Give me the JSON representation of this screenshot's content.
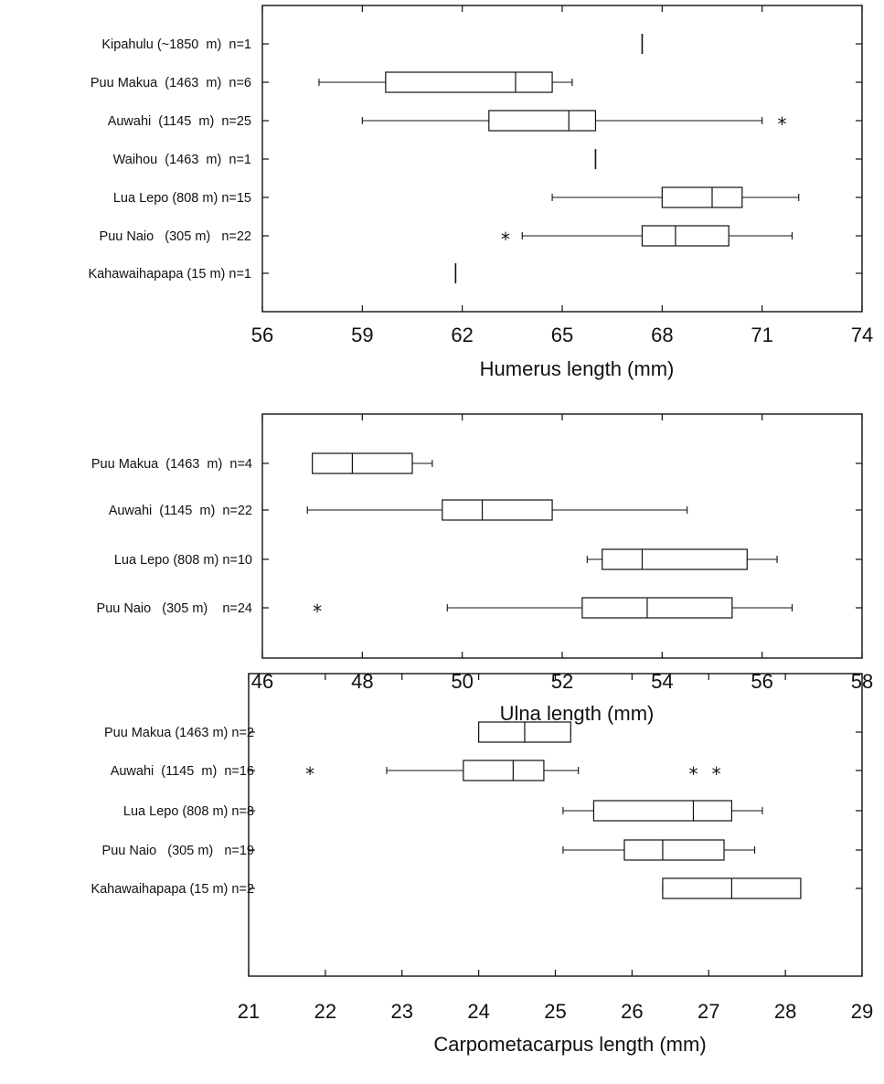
{
  "chart_data": [
    {
      "type": "boxplot",
      "xlabel": "Humerus length (mm)",
      "xlim": [
        56,
        74
      ],
      "xticks": [
        56,
        59,
        62,
        65,
        68,
        71,
        74
      ],
      "categories": [
        "Kipahulu (~1850  m)  n=1",
        "Puu Makua  (1463  m)  n=6",
        "Auwahi  (1145  m)  n=25",
        "Waihou  (1463  m)  n=1",
        "Lua Lepo (808 m) n=15",
        "Puu Naio   (305 m)   n=22",
        "Kahawaihapapa (15 m) n=1"
      ],
      "boxes": [
        {
          "single": 67.4
        },
        {
          "whisker_low": 57.7,
          "q1": 59.7,
          "median": 63.6,
          "q3": 64.7,
          "whisker_high": 65.3
        },
        {
          "whisker_low": 59.0,
          "q1": 62.8,
          "median": 65.2,
          "q3": 66.0,
          "whisker_high": 71.0,
          "outliers": [
            71.6
          ]
        },
        {
          "single": 66.0
        },
        {
          "whisker_low": 64.7,
          "q1": 68.0,
          "median": 69.5,
          "q3": 70.4,
          "whisker_high": 72.1
        },
        {
          "whisker_low": 63.8,
          "q1": 67.4,
          "median": 68.4,
          "q3": 70.0,
          "whisker_high": 71.9,
          "outliers": [
            63.3
          ]
        },
        {
          "single": 61.8
        }
      ]
    },
    {
      "type": "boxplot",
      "xlabel": "Ulna length (mm)",
      "xlim": [
        46,
        58
      ],
      "xticks": [
        46,
        48,
        50,
        52,
        54,
        56,
        58
      ],
      "categories": [
        "Puu Makua  (1463  m)  n=4",
        "Auwahi  (1145  m)  n=22",
        "Lua Lepo (808 m) n=10",
        "Puu Naio   (305 m)    n=24"
      ],
      "boxes": [
        {
          "whisker_low": 47.0,
          "q1": 47.0,
          "median": 47.8,
          "q3": 49.0,
          "whisker_high": 49.4
        },
        {
          "whisker_low": 46.9,
          "q1": 49.6,
          "median": 50.4,
          "q3": 51.8,
          "whisker_high": 54.5
        },
        {
          "whisker_low": 52.5,
          "q1": 52.8,
          "median": 53.6,
          "q3": 55.7,
          "whisker_high": 56.3
        },
        {
          "whisker_low": 49.7,
          "q1": 52.4,
          "median": 53.7,
          "q3": 55.4,
          "whisker_high": 56.6,
          "outliers": [
            47.1
          ]
        }
      ]
    },
    {
      "type": "boxplot",
      "xlabel": "Carpometacarpus length (mm)",
      "xlim": [
        21,
        29
      ],
      "xticks": [
        21,
        22,
        23,
        24,
        25,
        26,
        27,
        28,
        29
      ],
      "categories": [
        "Puu Makua (1463 m) n=2",
        "Auwahi  (1145  m)  n=16",
        "Lua Lepo (808 m) n=8",
        "Puu Naio   (305 m)   n=19",
        "Kahawaihapapa (15 m) n=2"
      ],
      "boxes": [
        {
          "whisker_low": 24.0,
          "q1": 24.0,
          "median": 24.6,
          "q3": 25.2,
          "whisker_high": 25.2
        },
        {
          "whisker_low": 22.8,
          "q1": 23.8,
          "median": 24.45,
          "q3": 24.85,
          "whisker_high": 25.3,
          "outliers": [
            21.8,
            26.8,
            27.1
          ]
        },
        {
          "whisker_low": 25.1,
          "q1": 25.5,
          "median": 26.8,
          "q3": 27.3,
          "whisker_high": 27.7
        },
        {
          "whisker_low": 25.1,
          "q1": 25.9,
          "median": 26.4,
          "q3": 27.2,
          "whisker_high": 27.6
        },
        {
          "whisker_low": 26.4,
          "q1": 26.4,
          "median": 27.3,
          "q3": 28.2,
          "whisker_high": 28.2
        }
      ]
    }
  ]
}
